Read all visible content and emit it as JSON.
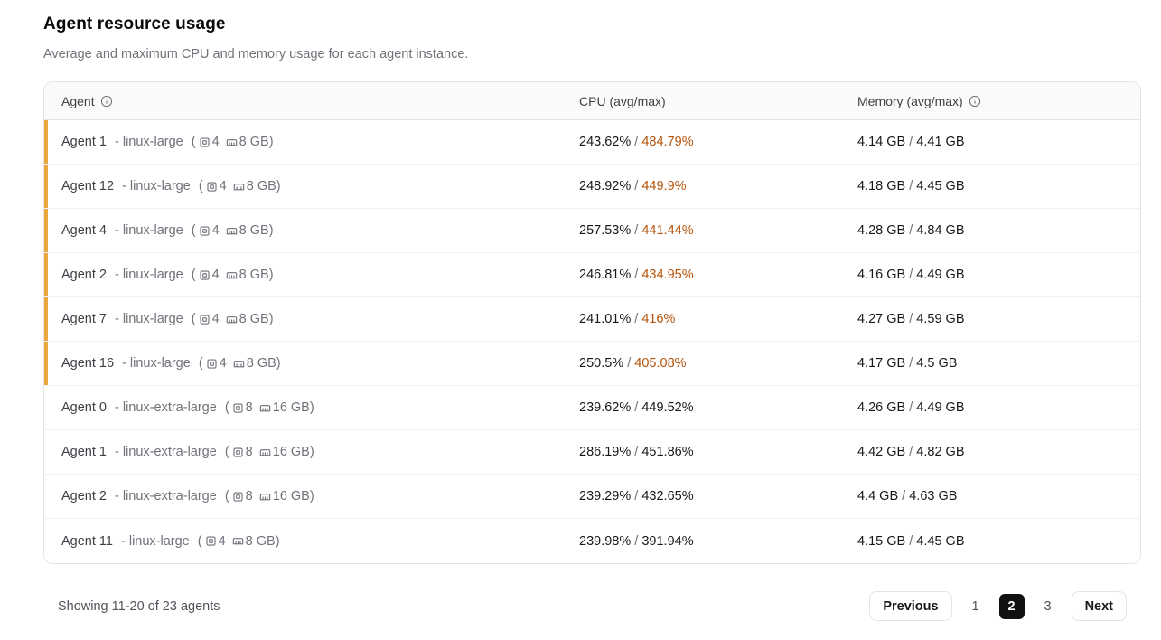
{
  "page": {
    "title": "Agent resource usage",
    "subtitle": "Average and maximum CPU and memory usage for each agent instance."
  },
  "table": {
    "columns": {
      "agent": "Agent",
      "cpu": "CPU (avg/max)",
      "memory": "Memory (avg/max)"
    },
    "rows": [
      {
        "name": "Agent 1",
        "type": "- linux-large",
        "cpus": "4",
        "ram": "8 GB",
        "cpu_avg": "243.62%",
        "cpu_max": "484.79%",
        "mem_avg": "4.14 GB",
        "mem_max": "4.41 GB",
        "flagged": true
      },
      {
        "name": "Agent 12",
        "type": "- linux-large",
        "cpus": "4",
        "ram": "8 GB",
        "cpu_avg": "248.92%",
        "cpu_max": "449.9%",
        "mem_avg": "4.18 GB",
        "mem_max": "4.45 GB",
        "flagged": true
      },
      {
        "name": "Agent 4",
        "type": "- linux-large",
        "cpus": "4",
        "ram": "8 GB",
        "cpu_avg": "257.53%",
        "cpu_max": "441.44%",
        "mem_avg": "4.28 GB",
        "mem_max": "4.84 GB",
        "flagged": true
      },
      {
        "name": "Agent 2",
        "type": "- linux-large",
        "cpus": "4",
        "ram": "8 GB",
        "cpu_avg": "246.81%",
        "cpu_max": "434.95%",
        "mem_avg": "4.16 GB",
        "mem_max": "4.49 GB",
        "flagged": true
      },
      {
        "name": "Agent 7",
        "type": "- linux-large",
        "cpus": "4",
        "ram": "8 GB",
        "cpu_avg": "241.01%",
        "cpu_max": "416%",
        "mem_avg": "4.27 GB",
        "mem_max": "4.59 GB",
        "flagged": true
      },
      {
        "name": "Agent 16",
        "type": "- linux-large",
        "cpus": "4",
        "ram": "8 GB",
        "cpu_avg": "250.5%",
        "cpu_max": "405.08%",
        "mem_avg": "4.17 GB",
        "mem_max": "4.5 GB",
        "flagged": true
      },
      {
        "name": "Agent 0",
        "type": "- linux-extra-large",
        "cpus": "8",
        "ram": "16 GB",
        "cpu_avg": "239.62%",
        "cpu_max": "449.52%",
        "mem_avg": "4.26 GB",
        "mem_max": "4.49 GB",
        "flagged": false
      },
      {
        "name": "Agent 1",
        "type": "- linux-extra-large",
        "cpus": "8",
        "ram": "16 GB",
        "cpu_avg": "286.19%",
        "cpu_max": "451.86%",
        "mem_avg": "4.42 GB",
        "mem_max": "4.82 GB",
        "flagged": false
      },
      {
        "name": "Agent 2",
        "type": "- linux-extra-large",
        "cpus": "8",
        "ram": "16 GB",
        "cpu_avg": "239.29%",
        "cpu_max": "432.65%",
        "mem_avg": "4.4 GB",
        "mem_max": "4.63 GB",
        "flagged": false
      },
      {
        "name": "Agent 11",
        "type": "- linux-large",
        "cpus": "4",
        "ram": "8 GB",
        "cpu_avg": "239.98%",
        "cpu_max": "391.94%",
        "mem_avg": "4.15 GB",
        "mem_max": "4.45 GB",
        "flagged": false
      }
    ],
    "separator": "/",
    "paren_open": "(",
    "paren_close": ")"
  },
  "footer": {
    "showing": "Showing 11-20 of 23 agents",
    "previous_label": "Previous",
    "next_label": "Next",
    "pages": [
      "1",
      "2",
      "3"
    ],
    "current_page": "2"
  },
  "colors": {
    "accent_orange": "#E9A63B",
    "warn_text": "#B45309",
    "active_page_bg": "#111113"
  }
}
